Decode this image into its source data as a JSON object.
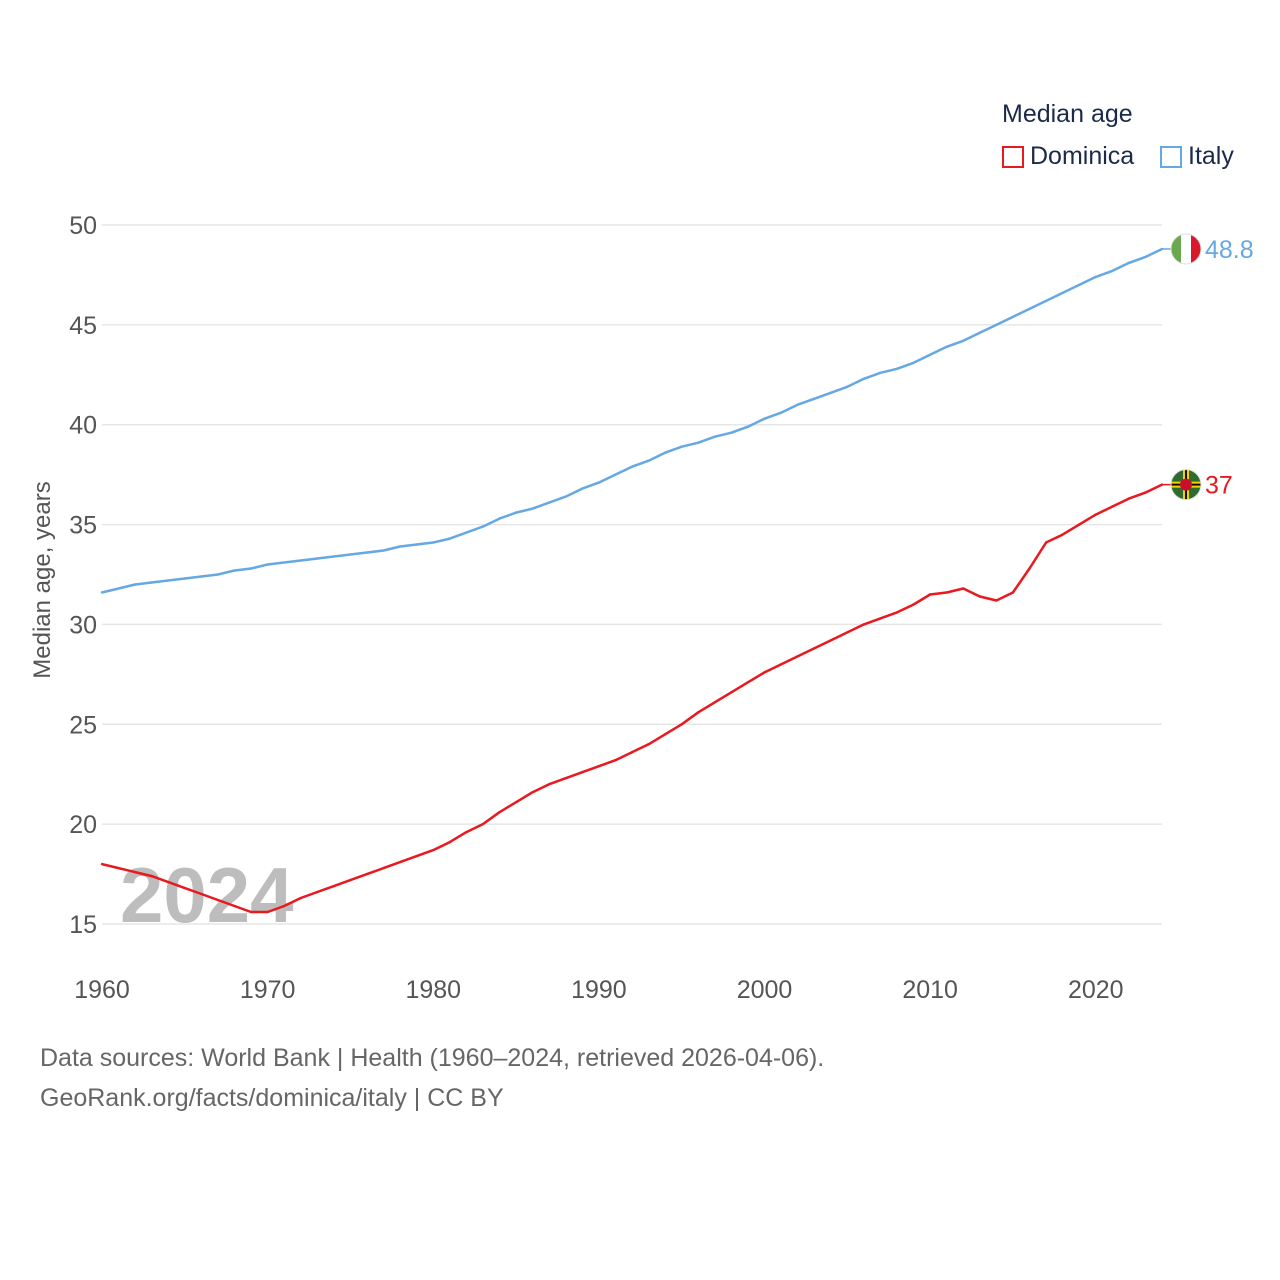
{
  "colors": {
    "dominica": "#e8191f",
    "italy": "#66a8e3",
    "grid": "#e6e6e6",
    "axis_text": "#555555",
    "year_watermark": "#bdbdbd",
    "flag_italy_green": "#6aa84f",
    "flag_italy_red": "#d9192b",
    "flag_dominica_green": "#2f6b2f",
    "flag_dominica_red": "#c8102e"
  },
  "legend": {
    "title": "Median age",
    "items": [
      "Dominica",
      "Italy"
    ]
  },
  "footer": {
    "line1": "Data sources: World Bank | Health (1960–2024, retrieved 2026-04-06).",
    "line2": "GeoRank.org/facts/dominica/italy | CC BY"
  },
  "chart_data": {
    "type": "line",
    "title": "Median age",
    "xlabel": "",
    "ylabel": "Median age, years",
    "year_label": "2024",
    "xlim": [
      1960,
      2024
    ],
    "ylim": [
      15,
      50
    ],
    "x_ticks": [
      1960,
      1970,
      1980,
      1990,
      2000,
      2010,
      2020
    ],
    "y_ticks": [
      15,
      20,
      25,
      30,
      35,
      40,
      45,
      50
    ],
    "grid": true,
    "legend_position": "top-right",
    "x": [
      1960,
      1961,
      1962,
      1963,
      1964,
      1965,
      1966,
      1967,
      1968,
      1969,
      1970,
      1971,
      1972,
      1973,
      1974,
      1975,
      1976,
      1977,
      1978,
      1979,
      1980,
      1981,
      1982,
      1983,
      1984,
      1985,
      1986,
      1987,
      1988,
      1989,
      1990,
      1991,
      1992,
      1993,
      1994,
      1995,
      1996,
      1997,
      1998,
      1999,
      2000,
      2001,
      2002,
      2003,
      2004,
      2005,
      2006,
      2007,
      2008,
      2009,
      2010,
      2011,
      2012,
      2013,
      2014,
      2015,
      2016,
      2017,
      2018,
      2019,
      2020,
      2021,
      2022,
      2023,
      2024
    ],
    "series": [
      {
        "name": "Dominica",
        "end_label": "37",
        "values": [
          18.0,
          17.8,
          17.6,
          17.4,
          17.1,
          16.8,
          16.5,
          16.2,
          15.9,
          15.6,
          15.6,
          15.9,
          16.3,
          16.6,
          16.9,
          17.2,
          17.5,
          17.8,
          18.1,
          18.4,
          18.7,
          19.1,
          19.6,
          20.0,
          20.6,
          21.1,
          21.6,
          22.0,
          22.3,
          22.6,
          22.9,
          23.2,
          23.6,
          24.0,
          24.5,
          25.0,
          25.6,
          26.1,
          26.6,
          27.1,
          27.6,
          28.0,
          28.4,
          28.8,
          29.2,
          29.6,
          30.0,
          30.3,
          30.6,
          31.0,
          31.5,
          31.6,
          31.8,
          31.4,
          31.2,
          31.6,
          32.8,
          34.1,
          34.5,
          35.0,
          35.5,
          35.9,
          36.3,
          36.6,
          37.0
        ]
      },
      {
        "name": "Italy",
        "end_label": "48.8",
        "values": [
          31.6,
          31.8,
          32.0,
          32.1,
          32.2,
          32.3,
          32.4,
          32.5,
          32.7,
          32.8,
          33.0,
          33.1,
          33.2,
          33.3,
          33.4,
          33.5,
          33.6,
          33.7,
          33.9,
          34.0,
          34.1,
          34.3,
          34.6,
          34.9,
          35.3,
          35.6,
          35.8,
          36.1,
          36.4,
          36.8,
          37.1,
          37.5,
          37.9,
          38.2,
          38.6,
          38.9,
          39.1,
          39.4,
          39.6,
          39.9,
          40.3,
          40.6,
          41.0,
          41.3,
          41.6,
          41.9,
          42.3,
          42.6,
          42.8,
          43.1,
          43.5,
          43.9,
          44.2,
          44.6,
          45.0,
          45.4,
          45.8,
          46.2,
          46.6,
          47.0,
          47.4,
          47.7,
          48.1,
          48.4,
          48.8
        ]
      }
    ]
  }
}
